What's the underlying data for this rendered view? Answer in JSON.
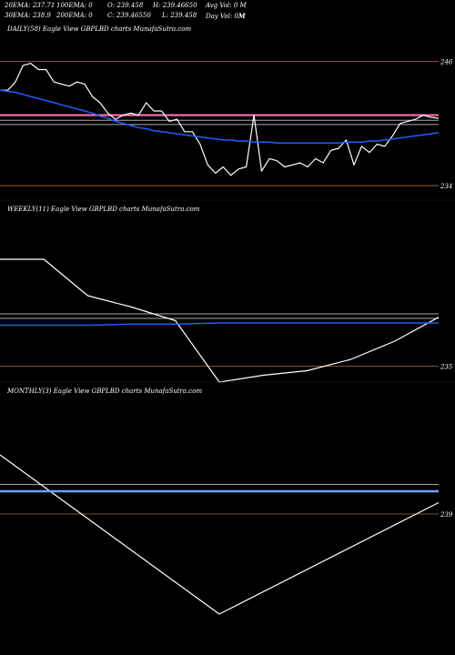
{
  "header": {
    "ema20": "20EMA: 237.71",
    "ema100": "100EMA: 0",
    "open": "O: 239.458",
    "high": "H: 239.46650",
    "avg_vol": "Avg Vol: 0  M",
    "ema30": "30EMA: 238.9",
    "ema200": "200EMA: 0",
    "close": "C: 239.46550",
    "low": "L: 239.458",
    "day_vol": "Day Vol: 0",
    "day_vol_unit": "M"
  },
  "colors": {
    "price": "#ffffff",
    "ema": "#1e5fff",
    "ema_light": "#6aa0ff",
    "pink": "#ff6fb0",
    "gray": "#aaaaaa",
    "level": "#b06a3a"
  },
  "chart_data": [
    {
      "type": "line",
      "title": "DAILY(58) Eagle  View  GBPLBD charts MunafaSutra.com",
      "y_ticks": [
        "246",
        "234"
      ],
      "y_tick_values": [
        246,
        234
      ],
      "ylim": [
        232.6,
        248.4
      ],
      "x": [
        0,
        1,
        2,
        3,
        4,
        5,
        6,
        7,
        8,
        9,
        10,
        11,
        12,
        13,
        14,
        15,
        16,
        17,
        18,
        19,
        20,
        21,
        22,
        23,
        24,
        25,
        26,
        27,
        28,
        29,
        30,
        31,
        32,
        33,
        34,
        35,
        36,
        37,
        38,
        39,
        40,
        41,
        42,
        43,
        44,
        45,
        46,
        47,
        48,
        49,
        50,
        51,
        52,
        53,
        54,
        55,
        56,
        57
      ],
      "series": [
        {
          "values": [
            243.2,
            243.2,
            244.0,
            245.6,
            245.8,
            245.2,
            245.2,
            244.0,
            243.8,
            243.6,
            244.0,
            243.8,
            242.6,
            242.0,
            241.0,
            240.4,
            240.8,
            241.0,
            240.8,
            242.0,
            241.2,
            241.2,
            240.2,
            240.4,
            239.2,
            239.2,
            238.0,
            236.0,
            235.2,
            235.8,
            235.0,
            235.6,
            235.8,
            240.8,
            235.4,
            236.6,
            236.4,
            235.8,
            236.0,
            236.2,
            235.8,
            236.6,
            236.2,
            237.4,
            237.6,
            238.4,
            236.0,
            237.8,
            237.2,
            238.0,
            237.8,
            238.8,
            240.0,
            240.2,
            240.4,
            240.8,
            240.6,
            240.5
          ]
        },
        {
          "values": [
            243.2,
            243.1,
            243.0,
            242.8,
            242.6,
            242.4,
            242.2,
            242.0,
            241.8,
            241.6,
            241.4,
            241.2,
            241.0,
            240.7,
            240.5,
            240.2,
            240.0,
            239.8,
            239.6,
            239.5,
            239.3,
            239.2,
            239.1,
            239.0,
            238.9,
            238.8,
            238.7,
            238.6,
            238.5,
            238.4,
            238.4,
            238.3,
            238.3,
            238.2,
            238.2,
            238.2,
            238.1,
            238.1,
            238.1,
            238.1,
            238.1,
            238.1,
            238.1,
            238.1,
            238.1,
            238.2,
            238.2,
            238.2,
            238.3,
            238.3,
            238.4,
            238.5,
            238.6,
            238.7,
            238.8,
            238.9,
            239.0,
            239.1
          ]
        }
      ],
      "levels": [
        246.0,
        234.0
      ],
      "pink_level": 240.8,
      "gray_levels": [
        240.3,
        239.9
      ]
    },
    {
      "type": "line",
      "title": "WEEKLY(11) Eagle  View  GBPLBD charts MunafaSutra.com",
      "y_ticks": [
        "235"
      ],
      "y_tick_values": [
        235
      ],
      "ylim": [
        232.0,
        248.0
      ],
      "x": [
        0,
        1,
        2,
        3,
        4,
        5,
        6,
        7,
        8,
        9,
        10
      ],
      "series": [
        {
          "values": [
            244.4,
            244.4,
            241.2,
            240.2,
            239.0,
            233.6,
            234.2,
            234.6,
            235.6,
            237.2,
            239.3
          ]
        },
        {
          "values": [
            238.6,
            238.6,
            238.6,
            238.7,
            238.7,
            238.8,
            238.8,
            238.8,
            238.8,
            238.8,
            238.8
          ]
        }
      ],
      "levels": [
        235.0
      ],
      "gray_levels": [
        239.6,
        239.2
      ]
    },
    {
      "type": "line",
      "title": "MONTHLY(3) Eagle  View  GBPLBD charts MunafaSutra.com",
      "y_ticks": [
        "239"
      ],
      "y_tick_values": [
        239
      ],
      "ylim": [
        234.0,
        244.0
      ],
      "x": [
        0,
        1,
        2
      ],
      "series": [
        {
          "values": [
            241.6,
            234.6,
            239.5
          ]
        },
        {
          "values": [
            240.0,
            240.0,
            240.0
          ]
        }
      ],
      "levels": [
        239.0
      ],
      "gray_levels": [
        240.3
      ]
    }
  ]
}
